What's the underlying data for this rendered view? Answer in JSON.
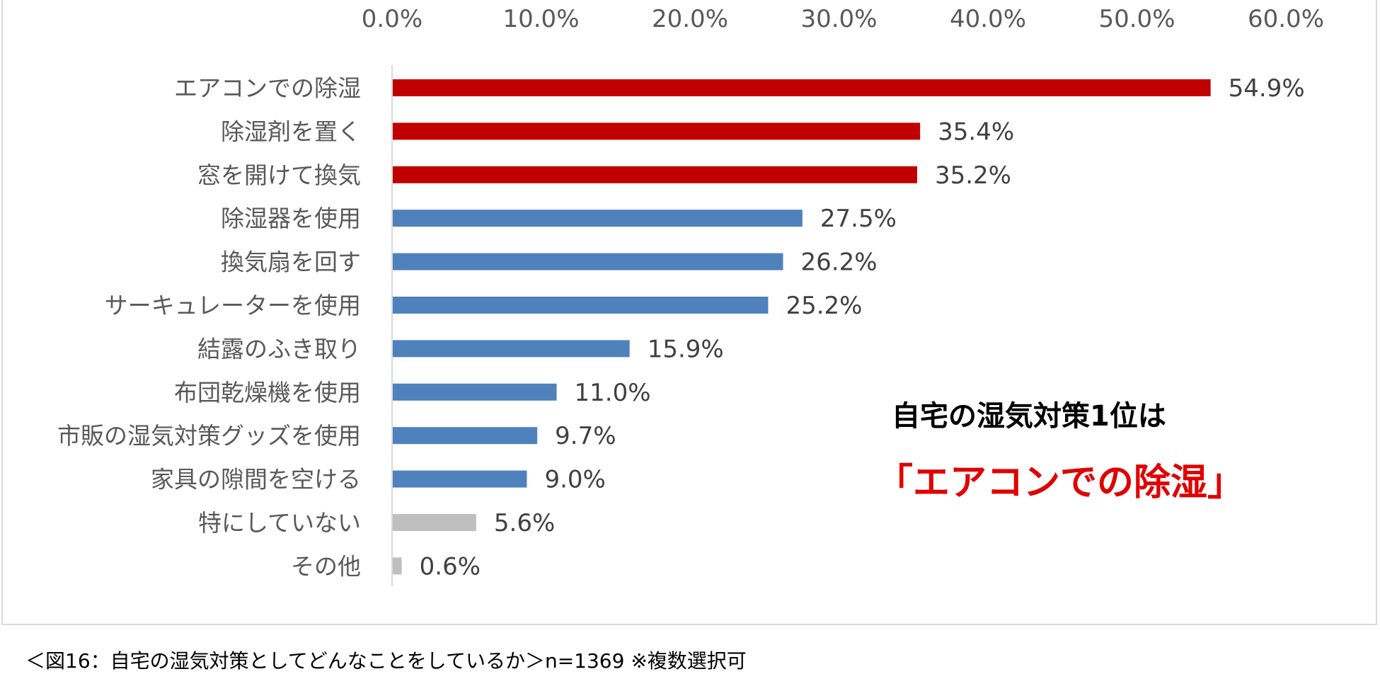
{
  "chart_data": {
    "type": "bar",
    "orientation": "horizontal",
    "categories": [
      "エアコンでの除湿",
      "除湿剤を置く",
      "窓を開けて換気",
      "除湿器を使用",
      "換気扇を回す",
      "サーキュレーターを使用",
      "結露のふき取り",
      "布団乾燥機を使用",
      "市販の湿気対策グッズを使用",
      "家具の隙間を空ける",
      "特にしていない",
      "その他"
    ],
    "values": [
      54.9,
      35.4,
      35.2,
      27.5,
      26.2,
      25.2,
      15.9,
      11.0,
      9.7,
      9.0,
      5.6,
      0.6
    ],
    "value_labels": [
      "54.9%",
      "35.4%",
      "35.2%",
      "27.5%",
      "26.2%",
      "25.2%",
      "15.9%",
      "11.0%",
      "9.7%",
      "9.0%",
      "5.6%",
      "0.6%"
    ],
    "bar_colors": [
      "#c00000",
      "#c00000",
      "#c00000",
      "#4f81bd",
      "#4f81bd",
      "#4f81bd",
      "#4f81bd",
      "#4f81bd",
      "#4f81bd",
      "#4f81bd",
      "#bfbfbf",
      "#bfbfbf"
    ],
    "xlim": [
      0,
      60
    ],
    "x_ticks": [
      "0.0%",
      "10.0%",
      "20.0%",
      "30.0%",
      "40.0%",
      "50.0%",
      "60.0%"
    ],
    "x_axis_position": "top",
    "grid": false,
    "title": "",
    "xlabel": "",
    "ylabel": ""
  },
  "callout": {
    "line1": "自宅の湿気対策1位は",
    "line2": "「エアコンでの除湿」",
    "line2_color": "#e00000"
  },
  "caption": "＜図16：自宅の湿気対策としてどんなことをしているか＞n=1369 ※複数選択可"
}
